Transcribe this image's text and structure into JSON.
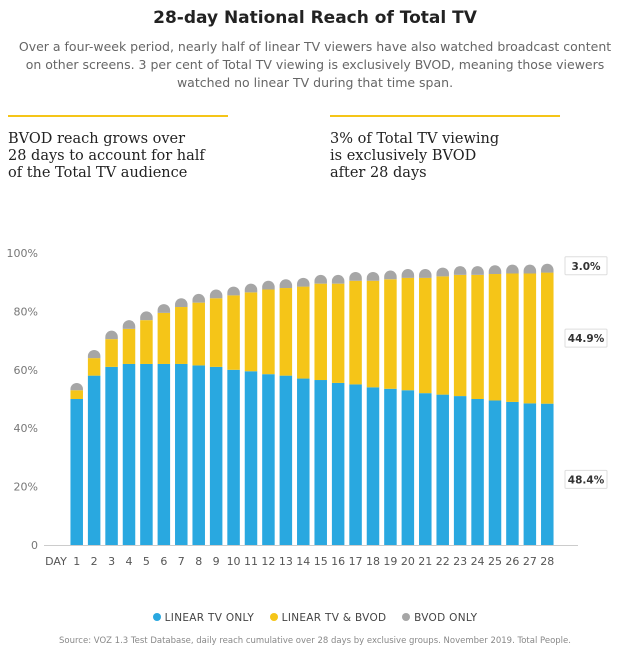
{
  "header": {
    "title": "28-day National Reach of Total TV",
    "subtitle": "Over a four-week period, nearly half of linear TV viewers have also watched broadcast content on other screens. 3 per cent of Total TV viewing is exclusively BVOD, meaning those viewers watched no linear TV during that time span."
  },
  "callouts": {
    "left": [
      "BVOD reach grows over",
      "28 days to account for half",
      "of the Total TV audience"
    ],
    "right": [
      "3% of Total TV viewing",
      "is exclusively BVOD",
      "after 28 days"
    ]
  },
  "colors": {
    "linear_only": "#29a8e0",
    "linear_bvod": "#f5c518",
    "bvod_only": "#a6a6a6"
  },
  "chart_data": {
    "type": "bar",
    "stacked": true,
    "x_prefix_label": "DAY",
    "categories": [
      "1",
      "2",
      "3",
      "4",
      "5",
      "6",
      "7",
      "8",
      "9",
      "10",
      "11",
      "12",
      "13",
      "14",
      "15",
      "16",
      "17",
      "18",
      "19",
      "20",
      "21",
      "22",
      "23",
      "24",
      "25",
      "26",
      "27",
      "28"
    ],
    "ylim": [
      0,
      100
    ],
    "yticks": [
      "0",
      "20%",
      "40%",
      "60%",
      "80%",
      "100%"
    ],
    "ytick_values": [
      0,
      20,
      40,
      60,
      80,
      100
    ],
    "series": [
      {
        "name": "LINEAR TV ONLY",
        "color": "#29a8e0",
        "values": [
          50,
          58,
          61,
          62,
          62,
          62,
          62,
          61.5,
          61,
          60,
          59.5,
          58.5,
          58,
          57,
          56.5,
          55.5,
          55,
          54,
          53.5,
          53,
          52,
          51.5,
          51,
          50,
          49.5,
          49,
          48.5,
          48.4
        ]
      },
      {
        "name": "LINEAR TV & BVOD",
        "color": "#f5c518",
        "values": [
          3,
          6,
          9.5,
          12,
          15,
          17.5,
          19.5,
          21.5,
          23.5,
          25.5,
          27,
          29,
          30,
          31.5,
          33,
          34,
          35.5,
          36.5,
          37.5,
          38.5,
          39.5,
          40.5,
          41.5,
          42.5,
          43.3,
          44,
          44.5,
          44.9
        ]
      },
      {
        "name": "BVOD ONLY",
        "color": "#a6a6a6",
        "values": [
          2.5,
          2.8,
          2.9,
          3,
          3,
          3,
          3,
          3,
          3,
          3,
          3,
          3,
          3,
          3,
          3,
          3,
          3,
          3,
          3,
          3,
          3,
          3,
          3,
          3,
          3,
          3,
          3,
          3.0
        ]
      }
    ],
    "end_labels": [
      "3.0%",
      "44.9%",
      "48.4%"
    ],
    "legend": "bottom-center"
  },
  "source": "Source: VOZ 1.3 Test Database, daily reach cumulative over 28 days by exclusive groups. November 2019. Total People."
}
